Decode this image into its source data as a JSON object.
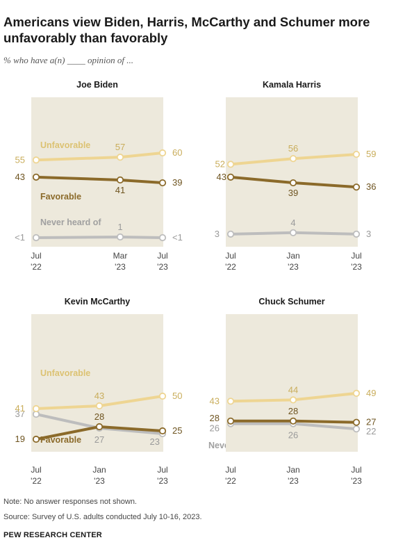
{
  "title": "Americans view Biden, Harris, McCarthy and Schumer more unfavorably than favorably",
  "subtitle": "% who have a(n) ____ opinion of ...",
  "note": "Note: No answer responses not shown.",
  "source": "Source: Survey of U.S. adults conducted July 10-16, 2023.",
  "org": "PEW RESEARCH CENTER",
  "colors": {
    "unfavorable": "#eed592",
    "favorable": "#8b6a2a",
    "never": "#bdbdbd",
    "panel_bg": "#ede9dc",
    "unfav_label": "#dcc272",
    "fav_label": "#8b6a2a",
    "never_label": "#a0a0a0"
  },
  "chart_data": [
    {
      "type": "line",
      "title": "Joe Biden",
      "x": [
        "Jul\n'22",
        "Mar\n'23",
        "Jul\n'23"
      ],
      "series": [
        {
          "name": "Unfavorable",
          "values": [
            55,
            57,
            60
          ],
          "labels": [
            "55",
            "57",
            "60"
          ]
        },
        {
          "name": "Favorable",
          "values": [
            43,
            41,
            39
          ],
          "labels": [
            "43",
            "41",
            "39"
          ]
        },
        {
          "name": "Never heard of",
          "values": [
            0.5,
            1,
            0.5
          ],
          "labels": [
            "<1",
            "1",
            "<1"
          ]
        }
      ]
    },
    {
      "type": "line",
      "title": "Kamala Harris",
      "x": [
        "Jul\n'22",
        "Jan\n'23",
        "Jul\n'23"
      ],
      "series": [
        {
          "name": "Unfavorable",
          "values": [
            52,
            56,
            59
          ],
          "labels": [
            "52",
            "56",
            "59"
          ]
        },
        {
          "name": "Favorable",
          "values": [
            43,
            39,
            36
          ],
          "labels": [
            "43",
            "39",
            "36"
          ]
        },
        {
          "name": "Never heard of",
          "values": [
            3,
            4,
            3
          ],
          "labels": [
            "3",
            "4",
            "3"
          ]
        }
      ]
    },
    {
      "type": "line",
      "title": "Kevin McCarthy",
      "x": [
        "Jul\n'22",
        "Jan\n'23",
        "Jul\n'23"
      ],
      "series": [
        {
          "name": "Unfavorable",
          "values": [
            41,
            43,
            50
          ],
          "labels": [
            "41",
            "43",
            "50"
          ]
        },
        {
          "name": "Favorable",
          "values": [
            19,
            28,
            25
          ],
          "labels": [
            "19",
            "28",
            "25"
          ]
        },
        {
          "name": "Never heard of",
          "values": [
            37,
            27,
            23
          ],
          "labels": [
            "37",
            "27",
            "23"
          ]
        }
      ]
    },
    {
      "type": "line",
      "title": "Chuck Schumer",
      "x": [
        "Jul\n'22",
        "Jan\n'23",
        "Jul\n'23"
      ],
      "series": [
        {
          "name": "Unfavorable",
          "values": [
            43,
            44,
            49
          ],
          "labels": [
            "43",
            "44",
            "49"
          ]
        },
        {
          "name": "Favorable",
          "values": [
            28,
            28,
            27
          ],
          "labels": [
            "28",
            "28",
            "27"
          ]
        },
        {
          "name": "Never heard of",
          "values": [
            26,
            26,
            22
          ],
          "labels": [
            "26",
            "26",
            "22"
          ]
        }
      ]
    }
  ]
}
